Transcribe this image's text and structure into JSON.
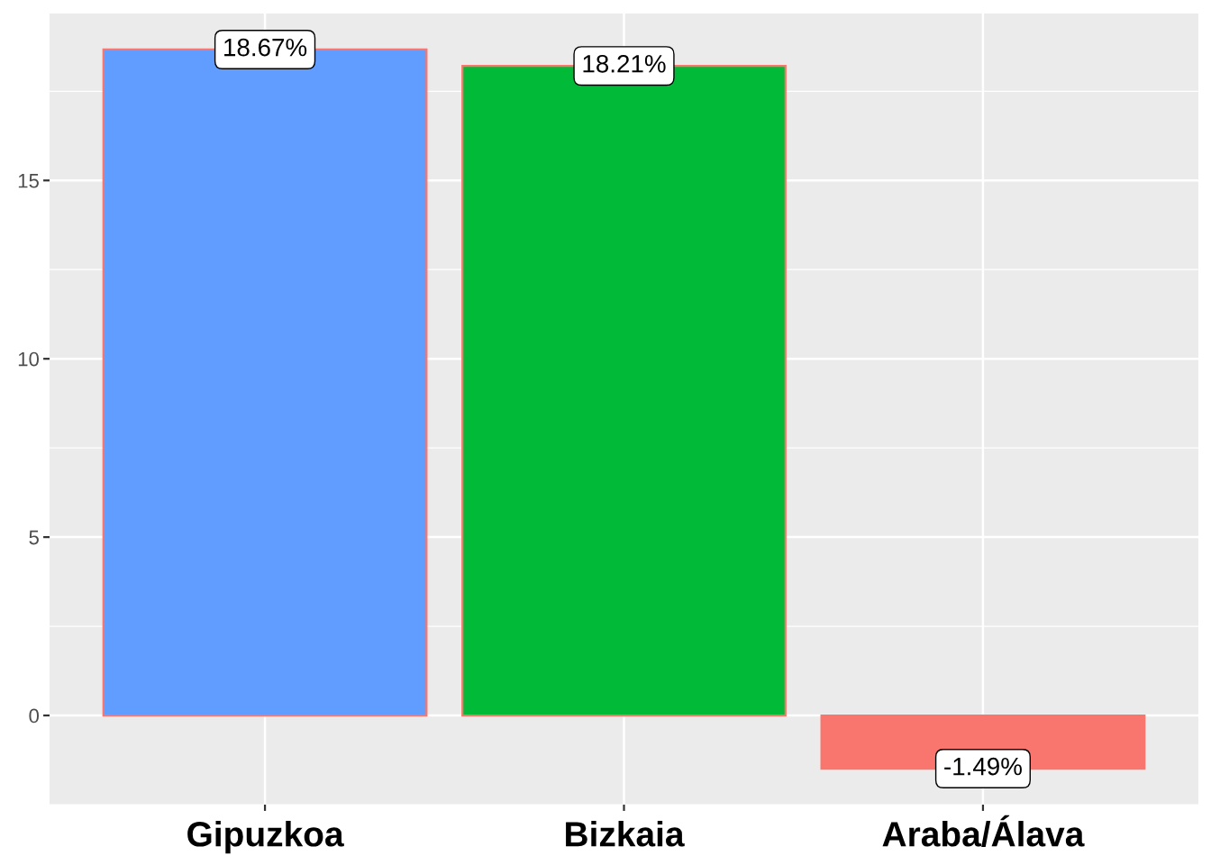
{
  "chart_data": {
    "type": "bar",
    "categories": [
      "Gipuzkoa",
      "Bizkaia",
      "Araba/Álava"
    ],
    "values": [
      18.67,
      18.21,
      -1.49
    ],
    "colors": [
      "#619cff",
      "#00ba38",
      "#f8766d"
    ],
    "value_labels": [
      "18.67%",
      "18.21%",
      "-1.49%"
    ],
    "ylim": [
      -2.5,
      19.68
    ],
    "yticks": [
      0,
      5,
      10,
      15
    ],
    "grid": true,
    "legend": false
  }
}
